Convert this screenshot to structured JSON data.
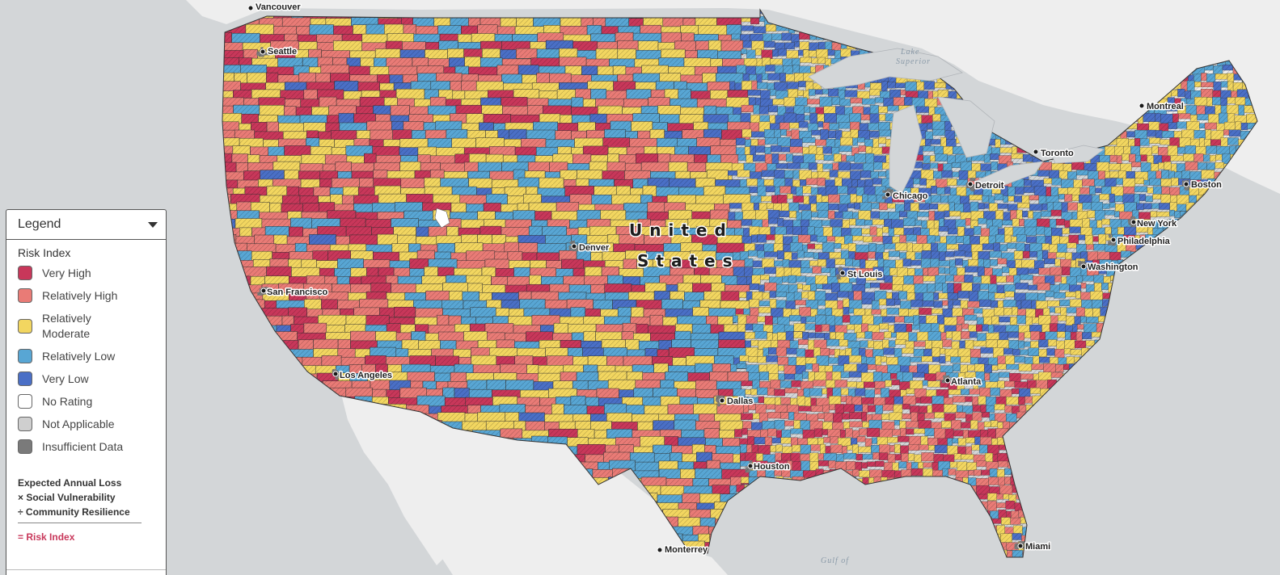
{
  "colors": {
    "very_high": "#c8375a",
    "relatively_high": "#e97b76",
    "relatively_moderate": "#f2d660",
    "relatively_low": "#58a6d4",
    "very_low": "#4a6fc6",
    "no_rating": "#ffffff",
    "not_applicable": "#cfcfcf",
    "insufficient_data": "#7a7a7a",
    "land_outside": "#eeeeee",
    "water": "#d3d6d8"
  },
  "map": {
    "country_label_line1": "United",
    "country_label_line2": "States",
    "cities": [
      {
        "name": "Vancouver",
        "key": "vancouver"
      },
      {
        "name": "Seattle",
        "key": "seattle"
      },
      {
        "name": "San Francisco",
        "key": "sanfrancisco"
      },
      {
        "name": "Los Angeles",
        "key": "losangeles"
      },
      {
        "name": "Denver",
        "key": "denver"
      },
      {
        "name": "Dallas",
        "key": "dallas"
      },
      {
        "name": "Houston",
        "key": "houston"
      },
      {
        "name": "Monterrey",
        "key": "monterrey"
      },
      {
        "name": "St Louis",
        "key": "stlouis"
      },
      {
        "name": "Chicago",
        "key": "chicago"
      },
      {
        "name": "Detroit",
        "key": "detroit"
      },
      {
        "name": "Toronto",
        "key": "toronto"
      },
      {
        "name": "Montreal",
        "key": "montreal"
      },
      {
        "name": "Boston",
        "key": "boston"
      },
      {
        "name": "New York",
        "key": "newyork"
      },
      {
        "name": "Philadelphia",
        "key": "philadelphia"
      },
      {
        "name": "Washington",
        "key": "washington"
      },
      {
        "name": "Atlanta",
        "key": "atlanta"
      },
      {
        "name": "Miami",
        "key": "miami"
      }
    ],
    "water_labels": {
      "lake_superior_1": "Lake",
      "lake_superior_2": "Superior",
      "gulf_1": "Gulf of"
    }
  },
  "legend": {
    "header": "Legend",
    "title": "Risk Index",
    "items": [
      {
        "label": "Very High",
        "key": "very_high"
      },
      {
        "label": "Relatively High",
        "key": "relatively_high"
      },
      {
        "label": "Relatively Moderate",
        "key": "relatively_moderate"
      },
      {
        "label": "Relatively Low",
        "key": "relatively_low"
      },
      {
        "label": "Very Low",
        "key": "very_low"
      },
      {
        "label": "No Rating",
        "key": "no_rating"
      },
      {
        "label": "Not Applicable",
        "key": "not_applicable"
      },
      {
        "label": "Insufficient Data",
        "key": "insufficient_data"
      }
    ],
    "formula": {
      "line1": "Expected Annual Loss",
      "line2": "× Social Vulnerability",
      "line3": "÷ Community Resilience",
      "result": "= Risk Index"
    }
  }
}
